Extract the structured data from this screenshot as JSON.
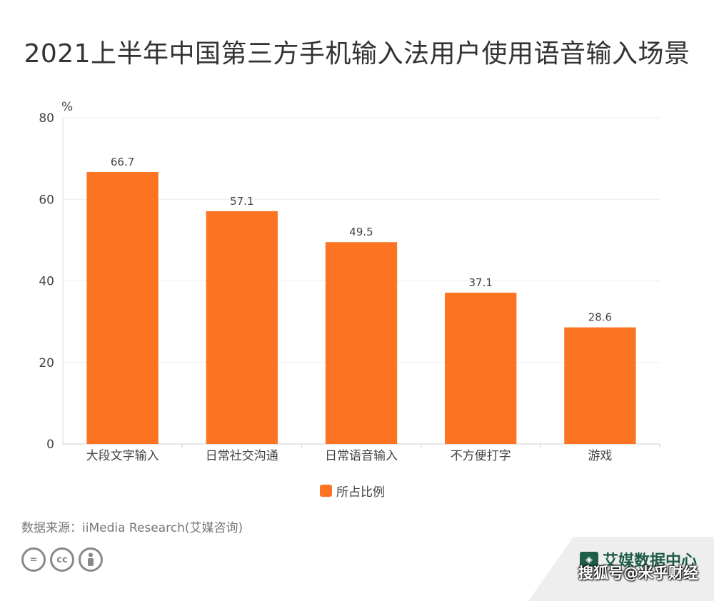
{
  "title": "2021上半年中国第三方手机输入法用户使用语音输入场景",
  "source": "数据来源：iiMedia Research(艾媒咨询)",
  "brand": "艾媒数据中心",
  "watermark": "搜狐号@米乎财经",
  "license_icons": [
    "equals-icon",
    "cc-icon",
    "person-icon"
  ],
  "chart_data": {
    "type": "bar",
    "title": "2021上半年中国第三方手机输入法用户使用语音输入场景",
    "xlabel": "",
    "ylabel": "%",
    "ylim": [
      0,
      80
    ],
    "yticks": [
      0,
      20,
      40,
      60,
      80
    ],
    "grid": true,
    "legend_position": "bottom",
    "categories": [
      "大段文字输入",
      "日常社交沟通",
      "日常语音输入",
      "不方便打字",
      "游戏"
    ],
    "series": [
      {
        "name": "所占比例",
        "color": "#fc7321",
        "values": [
          66.7,
          57.1,
          49.5,
          37.1,
          28.6
        ]
      }
    ]
  }
}
